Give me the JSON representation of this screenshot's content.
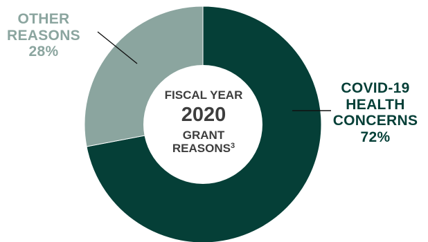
{
  "chart_data": {
    "type": "pie",
    "title_lines": [
      "FISCAL YEAR",
      "2020",
      "GRANT",
      "REASONS"
    ],
    "title_superscript": "3",
    "slices": [
      {
        "label_lines": [
          "COVID-19",
          "HEALTH",
          "CONCERNS"
        ],
        "value": 72,
        "value_label": "72%",
        "color": "#053f37"
      },
      {
        "label_lines": [
          "OTHER",
          "REASONS"
        ],
        "value": 28,
        "value_label": "28%",
        "color": "#8ba59f"
      }
    ]
  }
}
